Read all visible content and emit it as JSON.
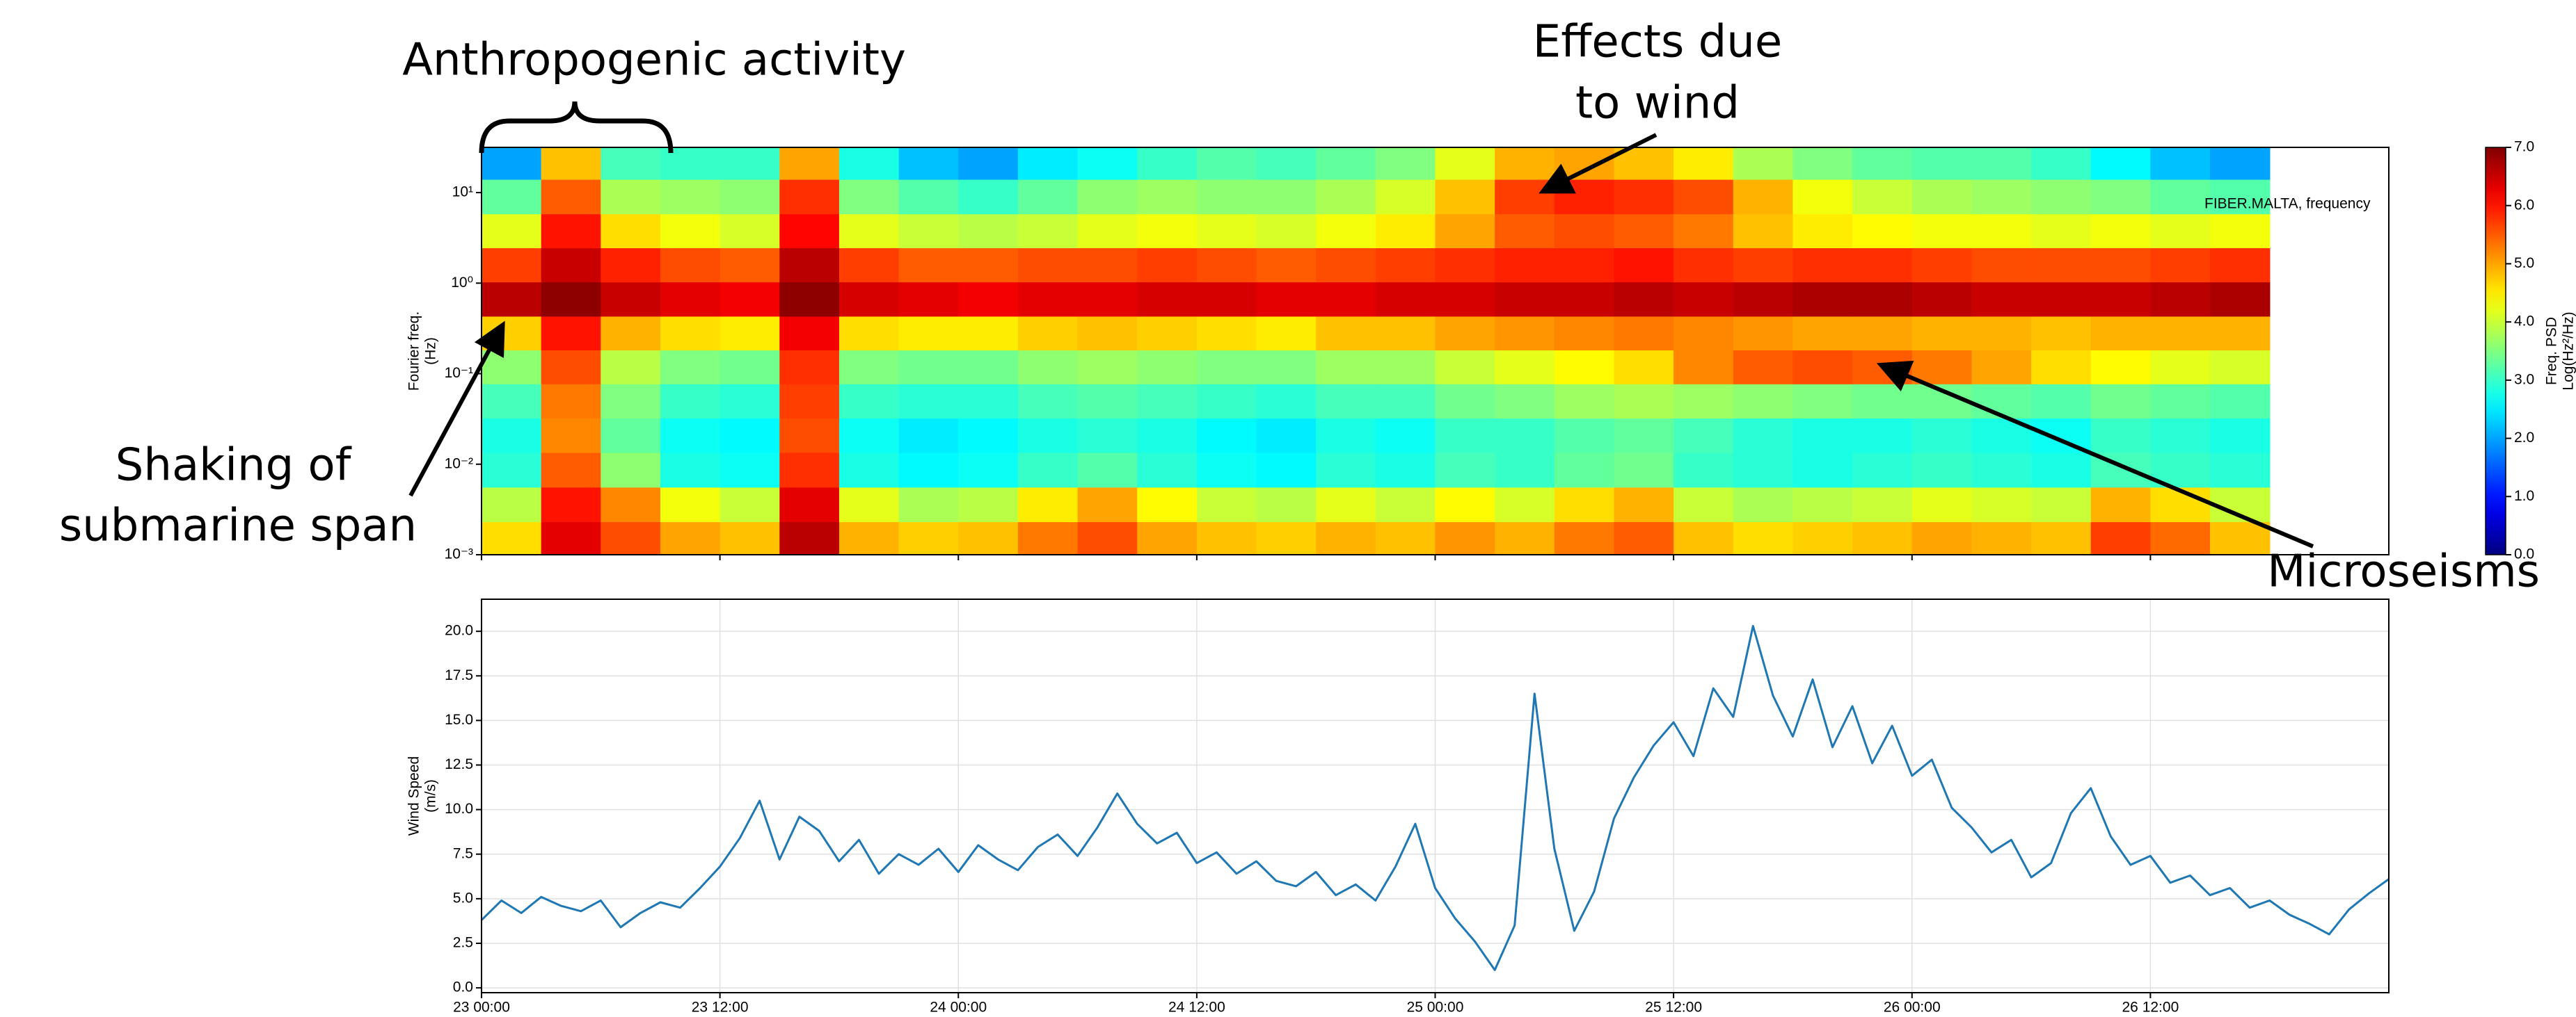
{
  "chart_data": [
    {
      "type": "heatmap",
      "ylabel": [
        "Fourier freq.",
        "(Hz)"
      ],
      "annotation": "FIBER.MALTA, frequency",
      "annotations": [
        {
          "text": "Anthropogenic activity"
        },
        {
          "lines": [
            "Effects due",
            "to wind"
          ]
        },
        {
          "lines": [
            "Shaking of",
            "submarine span"
          ]
        },
        {
          "text": "Microseisms"
        }
      ],
      "x": [
        1.5,
        4.5,
        7.5,
        10.5,
        13.5,
        16.5,
        19.5,
        22.5,
        25.5,
        28.5,
        31.5,
        34.5,
        37.5,
        40.5,
        43.5,
        46.5,
        49.5,
        52.5,
        55.5,
        58.5,
        61.5,
        64.5,
        67.5,
        70.5,
        73.5,
        76.5,
        79.5,
        82.5,
        85.5,
        88.5
      ],
      "y": [
        0.0015,
        0.0036,
        0.0087,
        0.021,
        0.05,
        0.12,
        0.28,
        0.67,
        1.6,
        3.8,
        9,
        22
      ],
      "z": [
        [
          4.6,
          6.3,
          5.6,
          5.0,
          4.8,
          6.6,
          4.9,
          4.7,
          4.8,
          5.3,
          5.6,
          5.0,
          4.8,
          4.7,
          4.9,
          4.8,
          5.1,
          4.9,
          5.3,
          5.5,
          4.8,
          4.6,
          4.7,
          4.8,
          5.0,
          4.9,
          4.8,
          5.7,
          5.4,
          4.8
        ],
        [
          3.9,
          6.0,
          5.2,
          4.3,
          4.0,
          6.3,
          4.2,
          3.8,
          3.9,
          4.5,
          5.0,
          4.4,
          4.0,
          3.9,
          4.2,
          4.0,
          4.4,
          4.1,
          4.6,
          4.9,
          4.0,
          3.8,
          3.9,
          4.0,
          4.2,
          4.1,
          4.0,
          4.9,
          4.6,
          4.0
        ],
        [
          2.9,
          5.5,
          3.6,
          2.8,
          2.7,
          5.8,
          2.8,
          2.6,
          2.7,
          3.0,
          3.2,
          2.9,
          2.7,
          2.6,
          2.9,
          2.8,
          3.1,
          3.0,
          3.3,
          3.4,
          3.0,
          2.9,
          2.8,
          2.9,
          3.0,
          2.9,
          2.8,
          3.1,
          3.0,
          2.9
        ],
        [
          2.8,
          5.2,
          3.3,
          2.7,
          2.6,
          5.6,
          2.7,
          2.5,
          2.6,
          2.8,
          2.9,
          2.8,
          2.6,
          2.5,
          2.8,
          2.7,
          3.0,
          3.0,
          3.2,
          3.3,
          3.1,
          2.9,
          2.8,
          2.8,
          2.9,
          2.8,
          2.7,
          3.0,
          2.9,
          2.8
        ],
        [
          3.1,
          5.3,
          3.5,
          3.0,
          2.9,
          5.7,
          3.0,
          2.9,
          2.9,
          3.1,
          3.2,
          3.1,
          3.0,
          2.9,
          3.1,
          3.1,
          3.4,
          3.5,
          3.7,
          3.8,
          3.7,
          3.6,
          3.5,
          3.4,
          3.4,
          3.3,
          3.2,
          3.4,
          3.3,
          3.2
        ],
        [
          3.6,
          5.6,
          3.9,
          3.5,
          3.4,
          5.8,
          3.5,
          3.4,
          3.4,
          3.6,
          3.7,
          3.6,
          3.5,
          3.5,
          3.7,
          3.7,
          4.0,
          4.2,
          4.4,
          4.6,
          5.2,
          5.5,
          5.6,
          5.5,
          5.3,
          5.0,
          4.6,
          4.4,
          4.2,
          4.1
        ],
        [
          4.7,
          6.0,
          4.9,
          4.6,
          4.5,
          6.2,
          4.6,
          4.5,
          4.5,
          4.7,
          4.8,
          4.7,
          4.6,
          4.5,
          4.8,
          4.8,
          5.0,
          5.1,
          5.2,
          5.3,
          5.2,
          5.1,
          5.0,
          5.0,
          4.9,
          4.9,
          4.8,
          4.9,
          4.9,
          4.9
        ],
        [
          6.6,
          6.9,
          6.5,
          6.3,
          6.2,
          6.9,
          6.4,
          6.3,
          6.2,
          6.3,
          6.3,
          6.4,
          6.4,
          6.3,
          6.3,
          6.4,
          6.4,
          6.5,
          6.5,
          6.6,
          6.5,
          6.6,
          6.7,
          6.7,
          6.6,
          6.5,
          6.5,
          6.5,
          6.6,
          6.7
        ],
        [
          5.7,
          6.5,
          5.9,
          5.6,
          5.5,
          6.6,
          5.7,
          5.5,
          5.5,
          5.6,
          5.6,
          5.7,
          5.6,
          5.5,
          5.6,
          5.7,
          5.8,
          5.9,
          5.9,
          6.0,
          5.8,
          5.7,
          5.8,
          5.8,
          5.7,
          5.6,
          5.6,
          5.6,
          5.7,
          5.8
        ],
        [
          4.2,
          6.0,
          4.6,
          4.3,
          4.1,
          6.1,
          4.2,
          4.0,
          3.9,
          4.0,
          4.2,
          4.3,
          4.2,
          4.1,
          4.3,
          4.5,
          5.0,
          5.5,
          5.6,
          5.5,
          5.3,
          4.8,
          4.5,
          4.4,
          4.3,
          4.3,
          4.2,
          4.3,
          4.2,
          4.3
        ],
        [
          3.3,
          5.5,
          3.8,
          3.7,
          3.6,
          5.8,
          3.5,
          3.2,
          3.0,
          3.3,
          3.6,
          3.7,
          3.6,
          3.6,
          3.8,
          4.1,
          4.8,
          5.7,
          5.9,
          5.8,
          5.6,
          4.9,
          4.3,
          4.0,
          3.8,
          3.7,
          3.6,
          3.5,
          3.3,
          3.2
        ],
        [
          2.0,
          4.8,
          3.1,
          3.0,
          3.0,
          5.0,
          2.8,
          2.2,
          2.0,
          2.5,
          2.7,
          3.0,
          3.2,
          3.1,
          3.3,
          3.5,
          4.2,
          4.9,
          5.0,
          4.8,
          4.5,
          3.8,
          3.5,
          3.3,
          3.2,
          3.2,
          3.0,
          2.6,
          2.2,
          2.0
        ]
      ],
      "xlim": [
        0,
        96
      ],
      "xticks": [
        0,
        12,
        24,
        36,
        48,
        60,
        72,
        84
      ],
      "ylim": [
        0.001,
        31.6
      ],
      "log_y": true,
      "yticks": [
        {
          "value": 0.001,
          "label": "10⁻³"
        },
        {
          "value": 0.01,
          "label": "10⁻²"
        },
        {
          "value": 0.1,
          "label": "10⁻¹"
        },
        {
          "value": 1,
          "label": "10⁰"
        },
        {
          "value": 10,
          "label": "10¹"
        }
      ],
      "colormap": "jet",
      "clim": [
        0,
        7
      ],
      "cticks": [
        {
          "value": 0,
          "label": "0.0"
        },
        {
          "value": 1,
          "label": "1.0"
        },
        {
          "value": 2,
          "label": "2.0"
        },
        {
          "value": 3,
          "label": "3.0"
        },
        {
          "value": 4,
          "label": "4.0"
        },
        {
          "value": 5,
          "label": "5.0"
        },
        {
          "value": 6,
          "label": "6.0"
        },
        {
          "value": 7,
          "label": "7.0"
        }
      ],
      "clabel": [
        "Freq. PSD",
        "Log(Hz²/Hz)"
      ]
    },
    {
      "type": "line",
      "ylabel": [
        "Wind Speed",
        "(m/s)"
      ],
      "color": "#1f77b4",
      "x": [
        0,
        1,
        2,
        3,
        4,
        5,
        6,
        7,
        8,
        9,
        10,
        11,
        12,
        13,
        14,
        15,
        16,
        17,
        18,
        19,
        20,
        21,
        22,
        23,
        24,
        25,
        26,
        27,
        28,
        29,
        30,
        31,
        32,
        33,
        34,
        35,
        36,
        37,
        38,
        39,
        40,
        41,
        42,
        43,
        44,
        45,
        46,
        47,
        48,
        49,
        50,
        51,
        52,
        53,
        54,
        55,
        56,
        57,
        58,
        59,
        60,
        61,
        62,
        63,
        64,
        65,
        66,
        67,
        68,
        69,
        70,
        71,
        72,
        73,
        74,
        75,
        76,
        77,
        78,
        79,
        80,
        81,
        82,
        83,
        84,
        85,
        86,
        87,
        88,
        89,
        90,
        91,
        92,
        93,
        94,
        95,
        96
      ],
      "values": [
        3.8,
        4.9,
        4.2,
        5.1,
        4.6,
        4.3,
        4.9,
        3.4,
        4.2,
        4.8,
        4.5,
        5.6,
        6.8,
        8.4,
        10.5,
        7.2,
        9.6,
        8.8,
        7.1,
        8.3,
        6.4,
        7.5,
        6.9,
        7.8,
        6.5,
        8.0,
        7.2,
        6.6,
        7.9,
        8.6,
        7.4,
        9.0,
        10.9,
        9.2,
        8.1,
        8.7,
        7.0,
        7.6,
        6.4,
        7.1,
        6.0,
        5.7,
        6.5,
        5.2,
        5.8,
        4.9,
        6.8,
        9.2,
        5.6,
        3.9,
        2.6,
        1.0,
        3.5,
        16.5,
        7.8,
        3.2,
        5.4,
        9.5,
        11.8,
        13.6,
        14.9,
        13.0,
        16.8,
        15.2,
        20.3,
        16.4,
        14.1,
        17.3,
        13.5,
        15.8,
        12.6,
        14.7,
        11.9,
        12.8,
        10.1,
        9.0,
        7.6,
        8.3,
        6.2,
        7.0,
        9.8,
        11.2,
        8.5,
        6.9,
        7.4,
        5.9,
        6.3,
        5.2,
        5.6,
        4.5,
        4.9,
        4.1,
        3.6,
        3.0,
        4.4,
        5.3,
        6.1
      ],
      "xlim": [
        0,
        96
      ],
      "xticks": [
        {
          "value": 0,
          "label": "23 00:00"
        },
        {
          "value": 12,
          "label": "23 12:00"
        },
        {
          "value": 24,
          "label": "24 00:00"
        },
        {
          "value": 36,
          "label": "24 12:00"
        },
        {
          "value": 48,
          "label": "25 00:00"
        },
        {
          "value": 60,
          "label": "25 12:00"
        },
        {
          "value": 72,
          "label": "26 00:00"
        },
        {
          "value": 84,
          "label": "26 12:00"
        }
      ],
      "ylim": [
        -0.27,
        21.8
      ],
      "yticks": [
        {
          "value": 0,
          "label": "0.0"
        },
        {
          "value": 2.5,
          "label": "2.5"
        },
        {
          "value": 5,
          "label": "5.0"
        },
        {
          "value": 7.5,
          "label": "7.5"
        },
        {
          "value": 10,
          "label": "10.0"
        },
        {
          "value": 12.5,
          "label": "12.5"
        },
        {
          "value": 15,
          "label": "15.0"
        },
        {
          "value": 17.5,
          "label": "17.5"
        },
        {
          "value": 20,
          "label": "20.0"
        }
      ],
      "grid": true
    }
  ]
}
